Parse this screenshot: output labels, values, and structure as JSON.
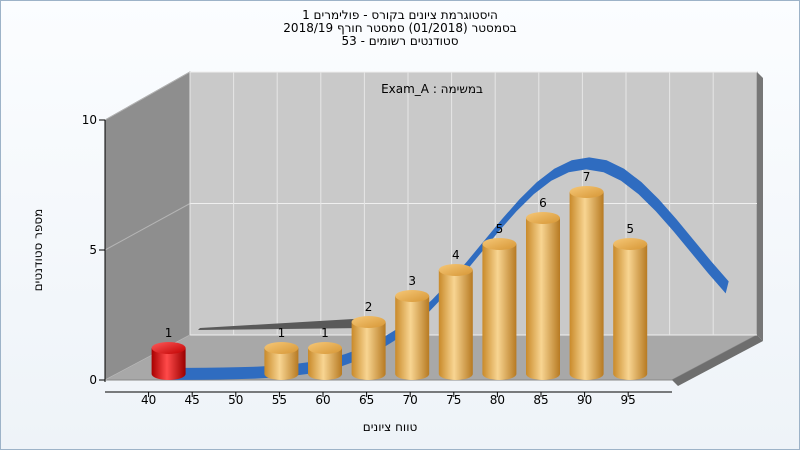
{
  "header": {
    "title_line1": "היסטוגרמת ציונים בקורס - פולימרים 1",
    "title_line2": "בסמסטר  (01/2018)  סמסטר חורף 2018/19",
    "title_line3": "סטודנטים רשומים - 53"
  },
  "annotation": "Exam_A : במשימה",
  "axes": {
    "ylabel": "מספר סטודנטים",
    "xlabel": "טווח ציונים"
  },
  "chart_data": {
    "type": "bar",
    "categories": [
      "40",
      "45",
      "50",
      "55",
      "60",
      "65",
      "70",
      "75",
      "80",
      "85",
      "90",
      "95"
    ],
    "values": [
      1,
      0,
      0,
      1,
      1,
      2,
      3,
      4,
      5,
      6,
      7,
      5
    ],
    "y_ticks": [
      "0",
      "5",
      "10"
    ],
    "ylim": [
      0,
      10
    ],
    "grid": true,
    "colors": {
      "failing_bar": "#e01818",
      "passing_bar": "#f0b04a",
      "trend_line": "#2f6cc0",
      "back_wall": "#c8c8c8",
      "side_wall": "#8c8c8c",
      "floor": "#a9a9a9"
    }
  }
}
